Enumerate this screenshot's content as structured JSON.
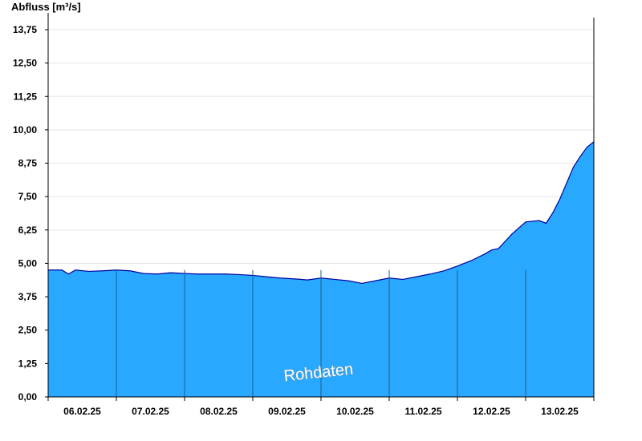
{
  "chart_data": {
    "type": "area",
    "title": "",
    "ylabel": "Abfluss [m³/s]",
    "xlabel": "",
    "ylim": [
      0,
      13.75
    ],
    "yticks": [
      "0,00",
      "1,25",
      "2,50",
      "3,75",
      "5,00",
      "6,25",
      "7,50",
      "8,75",
      "10,00",
      "11,25",
      "12,50",
      "13,75"
    ],
    "yvalues": [
      0,
      1.25,
      2.5,
      3.75,
      5.0,
      6.25,
      7.5,
      8.75,
      10.0,
      11.25,
      12.5,
      13.75
    ],
    "xlim": [
      0,
      8
    ],
    "xticks": [
      "06.02.25",
      "07.02.25",
      "08.02.25",
      "09.02.25",
      "10.02.25",
      "11.02.25",
      "12.02.25",
      "13.02.25"
    ],
    "grid": true,
    "fill_color": "#29a8ff",
    "line_color": "#0000a0",
    "watermark": "Rohdaten",
    "series": [
      {
        "x": [
          0,
          0.2,
          0.3,
          0.4,
          0.6,
          0.8,
          1.0,
          1.2,
          1.4,
          1.6,
          1.8,
          2.0,
          2.2,
          2.4,
          2.6,
          2.8,
          3.0,
          3.2,
          3.4,
          3.6,
          3.8,
          4.0,
          4.2,
          4.4,
          4.6,
          4.8,
          5.0,
          5.2,
          5.4,
          5.6,
          5.8,
          6.0,
          6.2,
          6.4,
          6.5,
          6.6,
          6.8,
          7.0,
          7.2,
          7.3,
          7.4,
          7.5,
          7.6,
          7.7,
          7.8,
          7.9,
          8.0
        ],
        "y": [
          4.75,
          4.75,
          4.6,
          4.75,
          4.7,
          4.72,
          4.75,
          4.72,
          4.62,
          4.6,
          4.65,
          4.62,
          4.6,
          4.6,
          4.6,
          4.58,
          4.55,
          4.5,
          4.45,
          4.42,
          4.38,
          4.45,
          4.4,
          4.35,
          4.25,
          4.35,
          4.45,
          4.4,
          4.5,
          4.6,
          4.72,
          4.9,
          5.1,
          5.35,
          5.5,
          5.55,
          6.1,
          6.55,
          6.6,
          6.5,
          6.9,
          7.4,
          8.0,
          8.6,
          9.0,
          9.35,
          9.55
        ]
      }
    ]
  }
}
